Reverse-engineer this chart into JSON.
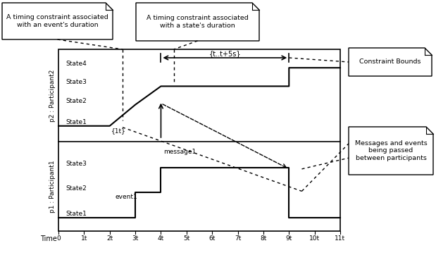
{
  "fig_width": 6.19,
  "fig_height": 3.96,
  "dpi": 100,
  "bg_color": "#ffffff",
  "p2_label": "p2 : Participant2",
  "p1_label": "p1 : Participant1",
  "time_label": "Time",
  "time_ticks": [
    "0",
    "1t",
    "2t",
    "3t",
    "4t",
    "5t",
    "6t",
    "7t",
    "8t",
    "9t",
    "10t",
    "11t"
  ],
  "p2_states": [
    "State4",
    "State3",
    "State2",
    "State1"
  ],
  "p1_states": [
    "State3",
    "State2",
    "State1"
  ],
  "note1_text": "A timing constraint associated\nwith an event's duration",
  "note2_text": "A timing constraint associated\nwith a state's duration",
  "note3_text": "Constraint Bounds",
  "note4_text": "Messages and events\nbeing passed\nbetween participants",
  "constraint_label": "{t..t+5s}",
  "timing_label_1t": "{1t}",
  "message1_label": "message1",
  "event1_label": "event1"
}
